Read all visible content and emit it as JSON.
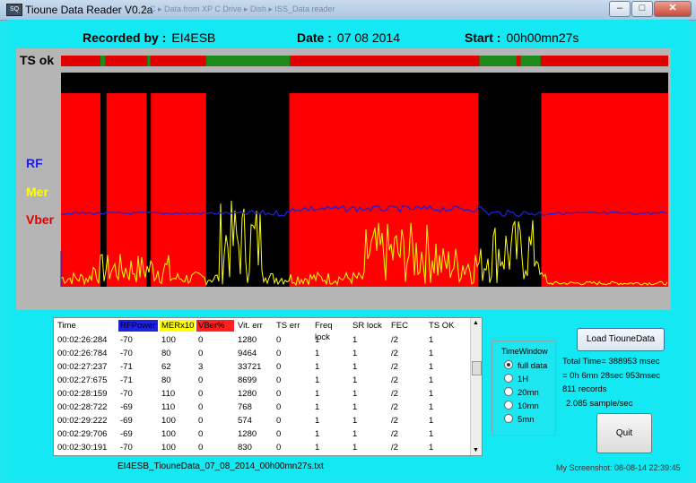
{
  "window": {
    "title": "Tioune Data Reader V0.2a",
    "behind_path": "▸ C ▸ Data from XP C Drive ▸ Dish ▸ ISS_Data reader",
    "btn_min": "–",
    "btn_max": "□",
    "btn_close": "✕",
    "app_icon": "SQ"
  },
  "header": {
    "recorded_label": "Recorded by :",
    "recorded_value": "EI4ESB",
    "date_label": "Date :",
    "date_value": "07 08 2014",
    "start_label": "Start :",
    "start_value": "00h00mn27s"
  },
  "plot": {
    "ts_label": "TS ok",
    "legend": {
      "rf": "RF",
      "mer": "Mer",
      "vber": "Vber"
    },
    "colors": {
      "rf": "#1f1fd6",
      "mer": "#ffff00",
      "vber": "#ff0000",
      "ts_ok": "#1e8a1e",
      "ts_bad": "#e00000",
      "plot_bg": "#ff0000",
      "lock_lost": "#000000"
    },
    "ts_ok_spans": [
      [
        0.065,
        0.073
      ],
      [
        0.142,
        0.147
      ],
      [
        0.239,
        0.377
      ],
      [
        0.689,
        0.75
      ],
      [
        0.757,
        0.79
      ]
    ],
    "lock_lost_spans": [
      [
        0.065,
        0.075
      ],
      [
        0.141,
        0.148
      ],
      [
        0.239,
        0.376
      ],
      [
        0.687,
        0.791
      ]
    ]
  },
  "table": {
    "headers": [
      "Time",
      "RFPower",
      "MERx10",
      "VBer%",
      "Vit. err",
      "TS err",
      "Freq lock",
      "SR lock",
      "FEC",
      "TS OK"
    ],
    "header_colors": [
      "#ffffff",
      "#2020e0",
      "#ffff00",
      "#ff2020",
      "#ffffff",
      "#ffffff",
      "#ffffff",
      "#ffffff",
      "#ffffff",
      "#ffffff"
    ],
    "rows": [
      [
        "00:02:26:284",
        "-70",
        "100",
        "0",
        "1280",
        "0",
        "1",
        "1",
        "/2",
        "1"
      ],
      [
        "00:02:26:784",
        "-70",
        "80",
        "0",
        "9464",
        "0",
        "1",
        "1",
        "/2",
        "1"
      ],
      [
        "00:02:27:237",
        "-71",
        "62",
        "3",
        "33721",
        "0",
        "1",
        "1",
        "/2",
        "1"
      ],
      [
        "00:02:27:675",
        "-71",
        "80",
        "0",
        "8699",
        "0",
        "1",
        "1",
        "/2",
        "1"
      ],
      [
        "00:02:28:159",
        "-70",
        "110",
        "0",
        "1280",
        "0",
        "1",
        "1",
        "/2",
        "1"
      ],
      [
        "00:02:28:722",
        "-69",
        "110",
        "0",
        "768",
        "0",
        "1",
        "1",
        "/2",
        "1"
      ],
      [
        "00:02:29:222",
        "-69",
        "100",
        "0",
        "574",
        "0",
        "1",
        "1",
        "/2",
        "1"
      ],
      [
        "00:02:29:706",
        "-69",
        "100",
        "0",
        "1280",
        "0",
        "1",
        "1",
        "/2",
        "1"
      ],
      [
        "00:02:30:191",
        "-70",
        "100",
        "0",
        "830",
        "0",
        "1",
        "1",
        "/2",
        "1"
      ]
    ],
    "scroll_up": "▲",
    "scroll_down": "▼"
  },
  "file_label": "EI4ESB_TiouneData_07_08_2014_00h00mn27s.txt",
  "time_window": {
    "title": "TimeWindow",
    "options": [
      "full data",
      "1H",
      "20mn",
      "10mn",
      "5mn"
    ],
    "selected": "full data"
  },
  "load_button": "Load TiouneData",
  "info": {
    "total_time": "Total Time= 388953 msec",
    "breakdown": "= 0h 6mn 28sec 953msec",
    "records": "811 records",
    "rate": "2.085 sample/sec"
  },
  "quit_button": "Quit",
  "screenshot_stamp": "My Screenshot: 08-08-14 22:39:45"
}
